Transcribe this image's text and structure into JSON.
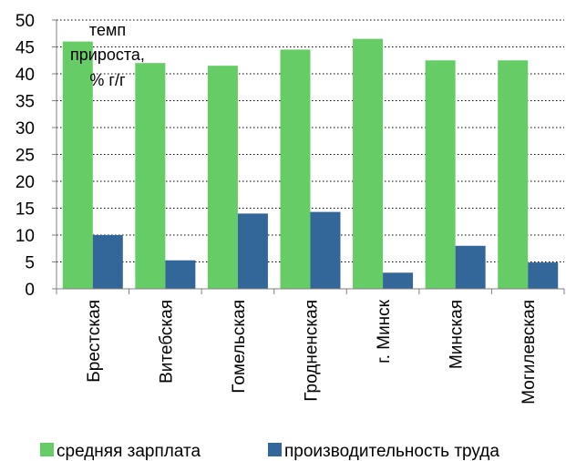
{
  "chart_data": {
    "type": "bar",
    "title": "",
    "unit_label": [
      "темп",
      "прироста,",
      "% г/г"
    ],
    "categories": [
      "Брестская",
      "Витебская",
      "Гомельская",
      "Гродненская",
      "г. Минск",
      "Минская",
      "Могилевская"
    ],
    "series": [
      {
        "name": "средняя зарплата",
        "color": "#66cc66",
        "values": [
          46,
          42,
          41.5,
          44.5,
          46.5,
          42.5,
          42.5
        ]
      },
      {
        "name": "производительность труда",
        "color": "#336699",
        "values": [
          10,
          5.3,
          14,
          14.3,
          3,
          8,
          4.9
        ]
      }
    ],
    "ylim": [
      0,
      50
    ],
    "yticks": [
      0,
      5,
      10,
      15,
      20,
      25,
      30,
      35,
      40,
      45,
      50
    ],
    "grid": true,
    "legend_position": "bottom"
  }
}
